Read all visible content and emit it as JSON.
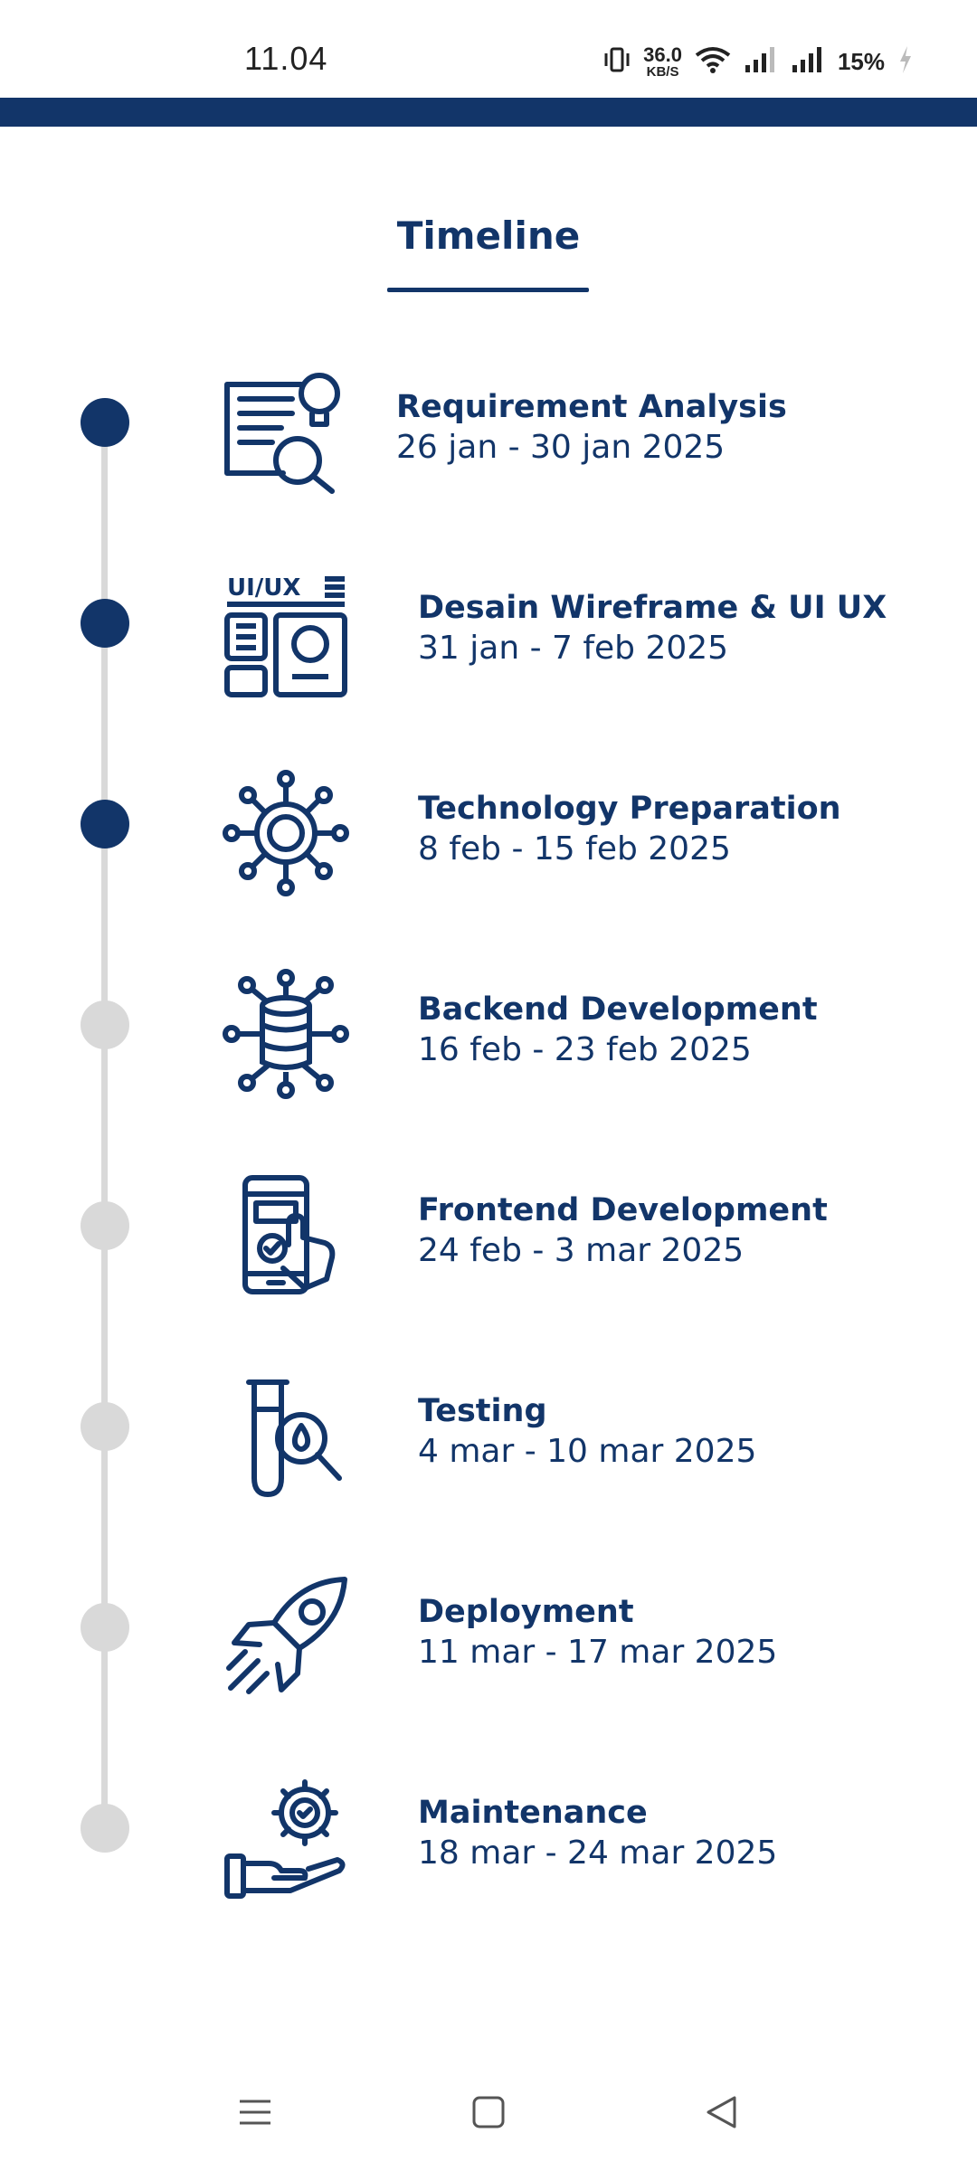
{
  "status_bar": {
    "time": "11.04",
    "net_speed_value": "36.0",
    "net_speed_unit": "KB/S",
    "battery_percent": "15%",
    "icons": [
      "vibrate-icon",
      "wifi-icon",
      "signal-icon",
      "signal-icon",
      "battery-charging-icon"
    ]
  },
  "header": {
    "title": "Timeline"
  },
  "timeline": {
    "items": [
      {
        "name": "Requirement Analysis",
        "date": "26 jan - 30 jan 2025",
        "completed": true,
        "icon": "requirement-analysis-icon"
      },
      {
        "name": "Desain Wireframe & UI UX",
        "date": "31 jan - 7 feb 2025",
        "completed": true,
        "icon": "ui-ux-icon",
        "icon_label": "UI/UX"
      },
      {
        "name": "Technology Preparation",
        "date": "8 feb - 15 feb 2025",
        "completed": true,
        "icon": "gear-network-icon"
      },
      {
        "name": "Backend Development",
        "date": "16 feb - 23 feb 2025",
        "completed": false,
        "icon": "database-network-icon"
      },
      {
        "name": "Frontend Development",
        "date": "24 feb - 3 mar 2025",
        "completed": false,
        "icon": "mobile-touch-icon"
      },
      {
        "name": "Testing",
        "date": "4 mar - 10 mar 2025",
        "completed": false,
        "icon": "test-tube-search-icon"
      },
      {
        "name": "Deployment",
        "date": "11 mar - 17 mar 2025",
        "completed": false,
        "icon": "rocket-icon"
      },
      {
        "name": "Maintenance",
        "date": "18 mar - 24 mar 2025",
        "completed": false,
        "icon": "hand-gear-icon"
      }
    ]
  },
  "colors": {
    "primary": "#123569",
    "inactive": "#d9d9d9",
    "background": "#ffffff"
  },
  "nav_bar": {
    "icons": [
      "menu-icon",
      "home-square-icon",
      "back-triangle-icon"
    ]
  }
}
